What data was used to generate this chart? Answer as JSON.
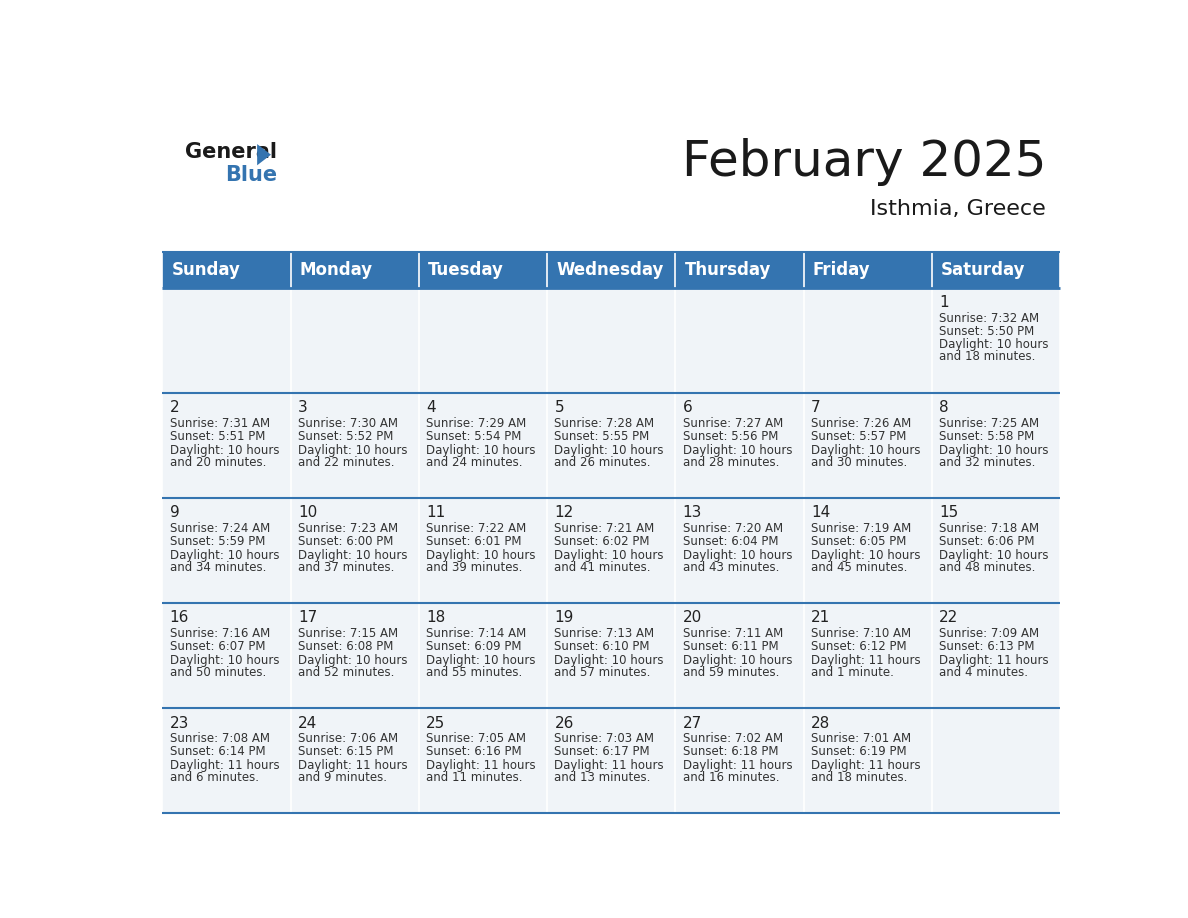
{
  "title": "February 2025",
  "subtitle": "Isthmia, Greece",
  "header_color": "#3474b0",
  "header_text_color": "#ffffff",
  "background_color": "#ffffff",
  "day_names": [
    "Sunday",
    "Monday",
    "Tuesday",
    "Wednesday",
    "Thursday",
    "Friday",
    "Saturday"
  ],
  "title_fontsize": 36,
  "subtitle_fontsize": 16,
  "header_fontsize": 12,
  "day_num_fontsize": 11,
  "info_fontsize": 8.5,
  "days": [
    {
      "day": 1,
      "col": 6,
      "row": 0,
      "sunrise": "7:32 AM",
      "sunset": "5:50 PM",
      "daylight": "10 hours and 18 minutes."
    },
    {
      "day": 2,
      "col": 0,
      "row": 1,
      "sunrise": "7:31 AM",
      "sunset": "5:51 PM",
      "daylight": "10 hours and 20 minutes."
    },
    {
      "day": 3,
      "col": 1,
      "row": 1,
      "sunrise": "7:30 AM",
      "sunset": "5:52 PM",
      "daylight": "10 hours and 22 minutes."
    },
    {
      "day": 4,
      "col": 2,
      "row": 1,
      "sunrise": "7:29 AM",
      "sunset": "5:54 PM",
      "daylight": "10 hours and 24 minutes."
    },
    {
      "day": 5,
      "col": 3,
      "row": 1,
      "sunrise": "7:28 AM",
      "sunset": "5:55 PM",
      "daylight": "10 hours and 26 minutes."
    },
    {
      "day": 6,
      "col": 4,
      "row": 1,
      "sunrise": "7:27 AM",
      "sunset": "5:56 PM",
      "daylight": "10 hours and 28 minutes."
    },
    {
      "day": 7,
      "col": 5,
      "row": 1,
      "sunrise": "7:26 AM",
      "sunset": "5:57 PM",
      "daylight": "10 hours and 30 minutes."
    },
    {
      "day": 8,
      "col": 6,
      "row": 1,
      "sunrise": "7:25 AM",
      "sunset": "5:58 PM",
      "daylight": "10 hours and 32 minutes."
    },
    {
      "day": 9,
      "col": 0,
      "row": 2,
      "sunrise": "7:24 AM",
      "sunset": "5:59 PM",
      "daylight": "10 hours and 34 minutes."
    },
    {
      "day": 10,
      "col": 1,
      "row": 2,
      "sunrise": "7:23 AM",
      "sunset": "6:00 PM",
      "daylight": "10 hours and 37 minutes."
    },
    {
      "day": 11,
      "col": 2,
      "row": 2,
      "sunrise": "7:22 AM",
      "sunset": "6:01 PM",
      "daylight": "10 hours and 39 minutes."
    },
    {
      "day": 12,
      "col": 3,
      "row": 2,
      "sunrise": "7:21 AM",
      "sunset": "6:02 PM",
      "daylight": "10 hours and 41 minutes."
    },
    {
      "day": 13,
      "col": 4,
      "row": 2,
      "sunrise": "7:20 AM",
      "sunset": "6:04 PM",
      "daylight": "10 hours and 43 minutes."
    },
    {
      "day": 14,
      "col": 5,
      "row": 2,
      "sunrise": "7:19 AM",
      "sunset": "6:05 PM",
      "daylight": "10 hours and 45 minutes."
    },
    {
      "day": 15,
      "col": 6,
      "row": 2,
      "sunrise": "7:18 AM",
      "sunset": "6:06 PM",
      "daylight": "10 hours and 48 minutes."
    },
    {
      "day": 16,
      "col": 0,
      "row": 3,
      "sunrise": "7:16 AM",
      "sunset": "6:07 PM",
      "daylight": "10 hours and 50 minutes."
    },
    {
      "day": 17,
      "col": 1,
      "row": 3,
      "sunrise": "7:15 AM",
      "sunset": "6:08 PM",
      "daylight": "10 hours and 52 minutes."
    },
    {
      "day": 18,
      "col": 2,
      "row": 3,
      "sunrise": "7:14 AM",
      "sunset": "6:09 PM",
      "daylight": "10 hours and 55 minutes."
    },
    {
      "day": 19,
      "col": 3,
      "row": 3,
      "sunrise": "7:13 AM",
      "sunset": "6:10 PM",
      "daylight": "10 hours and 57 minutes."
    },
    {
      "day": 20,
      "col": 4,
      "row": 3,
      "sunrise": "7:11 AM",
      "sunset": "6:11 PM",
      "daylight": "10 hours and 59 minutes."
    },
    {
      "day": 21,
      "col": 5,
      "row": 3,
      "sunrise": "7:10 AM",
      "sunset": "6:12 PM",
      "daylight": "11 hours and 1 minute."
    },
    {
      "day": 22,
      "col": 6,
      "row": 3,
      "sunrise": "7:09 AM",
      "sunset": "6:13 PM",
      "daylight": "11 hours and 4 minutes."
    },
    {
      "day": 23,
      "col": 0,
      "row": 4,
      "sunrise": "7:08 AM",
      "sunset": "6:14 PM",
      "daylight": "11 hours and 6 minutes."
    },
    {
      "day": 24,
      "col": 1,
      "row": 4,
      "sunrise": "7:06 AM",
      "sunset": "6:15 PM",
      "daylight": "11 hours and 9 minutes."
    },
    {
      "day": 25,
      "col": 2,
      "row": 4,
      "sunrise": "7:05 AM",
      "sunset": "6:16 PM",
      "daylight": "11 hours and 11 minutes."
    },
    {
      "day": 26,
      "col": 3,
      "row": 4,
      "sunrise": "7:03 AM",
      "sunset": "6:17 PM",
      "daylight": "11 hours and 13 minutes."
    },
    {
      "day": 27,
      "col": 4,
      "row": 4,
      "sunrise": "7:02 AM",
      "sunset": "6:18 PM",
      "daylight": "11 hours and 16 minutes."
    },
    {
      "day": 28,
      "col": 5,
      "row": 4,
      "sunrise": "7:01 AM",
      "sunset": "6:19 PM",
      "daylight": "11 hours and 18 minutes."
    }
  ]
}
